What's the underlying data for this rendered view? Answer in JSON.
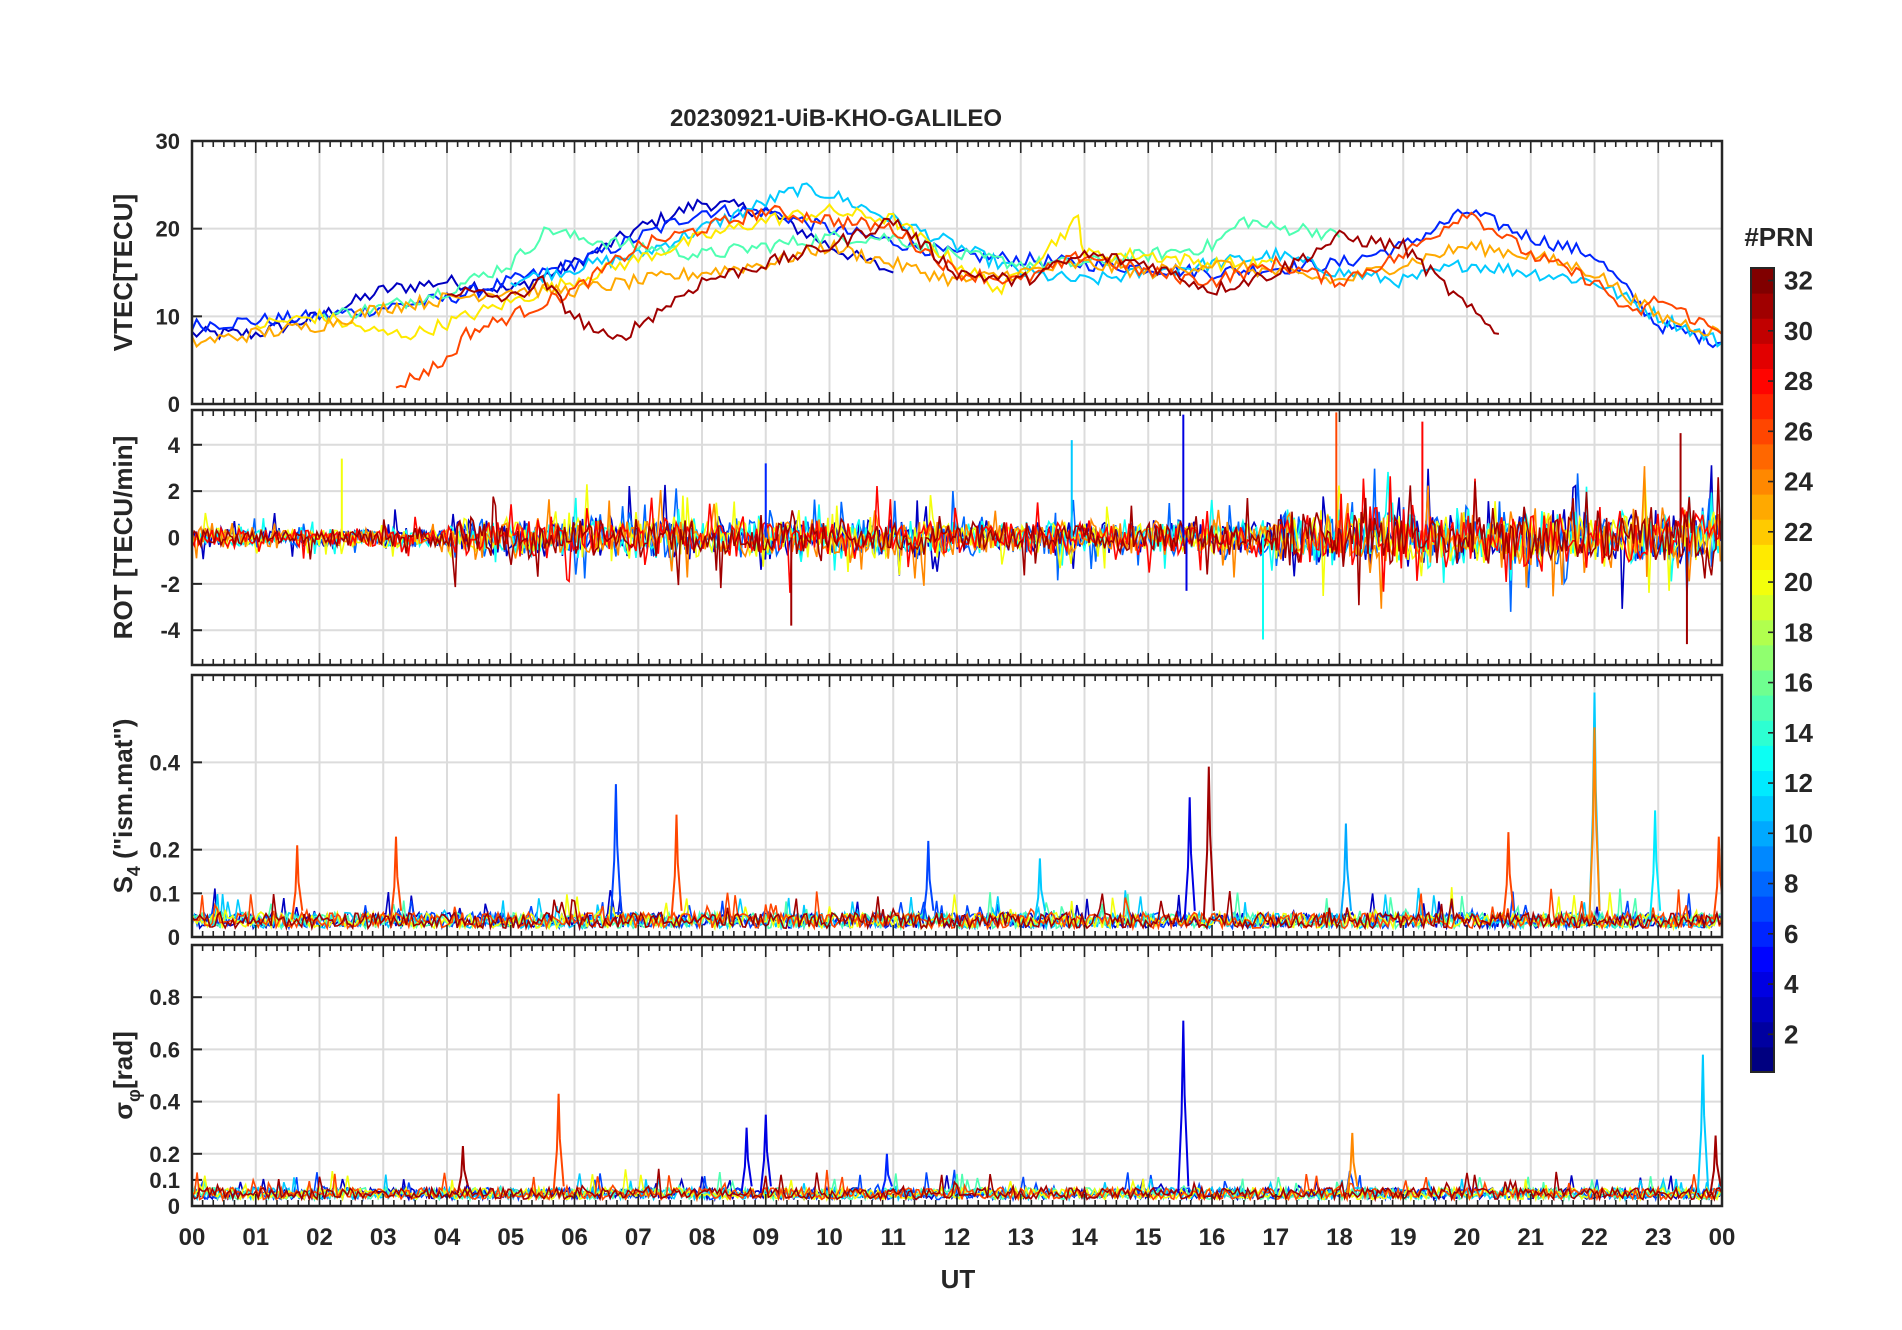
{
  "chart_data": {
    "type": "line",
    "title": "20230921-UiB-KHO-GALILEO",
    "xlabel": "UT",
    "x_tick_labels": [
      "00",
      "01",
      "02",
      "03",
      "04",
      "05",
      "06",
      "07",
      "08",
      "09",
      "10",
      "11",
      "12",
      "13",
      "14",
      "15",
      "16",
      "17",
      "18",
      "19",
      "20",
      "21",
      "22",
      "23",
      "00"
    ],
    "xlim_hours": [
      0,
      24
    ],
    "grid": true,
    "colorbar": {
      "title": "#PRN",
      "range": [
        1,
        32
      ],
      "ticks": [
        "2",
        "4",
        "6",
        "8",
        "10",
        "12",
        "14",
        "16",
        "18",
        "20",
        "22",
        "24",
        "26",
        "28",
        "30",
        "32"
      ],
      "colormap": "jet"
    },
    "panels": [
      {
        "id": "vtec",
        "ylabel": "VTEC[TECU]",
        "ylim": [
          0,
          30
        ],
        "y_ticks": [
          "0",
          "10",
          "20",
          "30"
        ],
        "series": [
          {
            "prn": 3,
            "x": [
              0,
              1,
              2,
              3,
              4,
              5,
              6,
              7,
              8,
              9,
              10,
              11
            ],
            "values": [
              8,
              8,
              10,
              13,
              14,
              13,
              16,
              20,
              23,
              22,
              18,
              15
            ]
          },
          {
            "prn": 6,
            "x": [
              0,
              2,
              4,
              6,
              8,
              9,
              10,
              12,
              14,
              16,
              18,
              19,
              20,
              21,
              22,
              23,
              24
            ],
            "values": [
              9,
              10,
              12,
              16,
              22,
              22,
              20,
              17,
              16,
              15,
              16,
              18,
              22,
              19,
              17,
              9,
              7
            ]
          },
          {
            "prn": 11,
            "x": [
              5,
              7,
              8,
              9,
              9.5,
              10,
              11,
              12,
              13,
              14,
              15,
              16,
              17,
              18,
              19,
              20,
              21,
              22,
              23,
              24
            ],
            "values": [
              14,
              17,
              20,
              23,
              24.5,
              24,
              21,
              18,
              15,
              14,
              15,
              16,
              17,
              15,
              14,
              16,
              15,
              14,
              10,
              7
            ]
          },
          {
            "prn": 15,
            "x": [
              2,
              3,
              4,
              5,
              5.6,
              6,
              7,
              8,
              9,
              10,
              11,
              12,
              13,
              14,
              15,
              16,
              16.5,
              17,
              17.5,
              18
            ],
            "values": [
              10,
              11,
              13,
              16,
              20,
              19,
              18,
              17,
              18,
              19,
              19,
              17,
              16,
              16,
              17,
              18,
              21,
              20,
              20,
              19
            ]
          },
          {
            "prn": 21,
            "x": [
              1,
              2,
              3,
              3.5,
              8,
              9,
              10,
              11,
              12,
              12.7,
              13,
              13.9,
              14,
              15,
              16,
              17
            ],
            "values": [
              9,
              10,
              8,
              8,
              19,
              21,
              22,
              21,
              16,
              13,
              15,
              21,
              17,
              17,
              16,
              16
            ]
          },
          {
            "prn": 23,
            "x": [
              0,
              2,
              3,
              4,
              5,
              6,
              7,
              8,
              9,
              10,
              11,
              12,
              13,
              14,
              15,
              16,
              17,
              18,
              19,
              20,
              21,
              22,
              23,
              24
            ],
            "values": [
              7,
              9,
              11,
              12,
              13,
              13,
              14,
              15,
              16,
              18,
              16,
              14,
              15,
              16,
              15,
              16,
              15,
              14,
              16,
              18,
              17,
              15,
              10,
              8
            ]
          },
          {
            "prn": 26,
            "x": [
              3.2,
              4,
              4.3,
              5,
              6,
              7,
              8,
              9,
              10,
              11,
              12,
              13,
              14,
              15,
              16,
              17,
              18,
              19,
              20,
              20.4,
              21,
              22,
              22.6,
              23,
              24
            ],
            "values": [
              2,
              5,
              8,
              10,
              13,
              18,
              20,
              22,
              21,
              20,
              15,
              14,
              17,
              15,
              14,
              16,
              14,
              17,
              22,
              20,
              17,
              14,
              10,
              12,
              8
            ]
          },
          {
            "prn": 31,
            "x": [
              4,
              5,
              5.5,
              6,
              6.6,
              8,
              10,
              11,
              12,
              13,
              14,
              15,
              16,
              17,
              18,
              19,
              20,
              20.5
            ],
            "values": [
              13,
              12,
              14,
              10,
              7,
              14,
              18,
              21,
              15,
              14,
              17,
              16,
              13,
              15,
              19,
              18,
              11,
              8
            ]
          }
        ]
      },
      {
        "id": "rot",
        "ylabel": "ROT [TECU/min]",
        "ylim": [
          -5.5,
          5.5
        ],
        "y_ticks": [
          "-4",
          "-2",
          "0",
          "2",
          "4"
        ],
        "spikes": [
          {
            "prn": 4,
            "x": 15.55,
            "value": 5.3
          },
          {
            "prn": 4,
            "x": 15.6,
            "value": -2.3
          },
          {
            "prn": 26,
            "x": 17.95,
            "value": 5.4
          },
          {
            "prn": 28,
            "x": 19.3,
            "value": 5.0
          },
          {
            "prn": 31,
            "x": 9.4,
            "value": -3.8
          },
          {
            "prn": 31,
            "x": 23.35,
            "value": 4.5
          },
          {
            "prn": 31,
            "x": 23.45,
            "value": -4.6
          },
          {
            "prn": 13,
            "x": 16.8,
            "value": -4.4
          },
          {
            "prn": 20,
            "x": 2.35,
            "value": 3.4
          },
          {
            "prn": 6,
            "x": 9.0,
            "value": 3.2
          },
          {
            "prn": 11,
            "x": 13.8,
            "value": 4.2
          }
        ],
        "noise_amplitude": {
          "00-04": 0.7,
          "04-12": 1.4,
          "12-17": 1.2,
          "17-24": 2.0
        }
      },
      {
        "id": "s4",
        "ylabel": "S4 (\"ism.mat\")",
        "ylabel_main": "S",
        "ylabel_sub": "4",
        "ylabel_tail": " (\"ism.mat\")",
        "ylim": [
          0,
          0.6
        ],
        "y_ticks": [
          "0",
          "0.1",
          "0.2",
          "0.4"
        ],
        "spikes": [
          {
            "prn": 26,
            "x": 1.65,
            "value": 0.21
          },
          {
            "prn": 26,
            "x": 3.2,
            "value": 0.23
          },
          {
            "prn": 7,
            "x": 6.65,
            "value": 0.35
          },
          {
            "prn": 26,
            "x": 7.6,
            "value": 0.28
          },
          {
            "prn": 7,
            "x": 11.55,
            "value": 0.22
          },
          {
            "prn": 11,
            "x": 13.3,
            "value": 0.18
          },
          {
            "prn": 4,
            "x": 15.65,
            "value": 0.32
          },
          {
            "prn": 31,
            "x": 15.95,
            "value": 0.39
          },
          {
            "prn": 10,
            "x": 18.1,
            "value": 0.26
          },
          {
            "prn": 26,
            "x": 20.65,
            "value": 0.24
          },
          {
            "prn": 11,
            "x": 22.0,
            "value": 0.56
          },
          {
            "prn": 24,
            "x": 22.0,
            "value": 0.48
          },
          {
            "prn": 12,
            "x": 22.95,
            "value": 0.29
          },
          {
            "prn": 26,
            "x": 23.95,
            "value": 0.23
          }
        ],
        "baseline": 0.04
      },
      {
        "id": "sigma_phi",
        "ylabel": "σφ[rad]",
        "ylabel_main": "σ",
        "ylabel_sub": "φ",
        "ylabel_tail": "[rad]",
        "ylim": [
          0,
          1.0
        ],
        "y_ticks": [
          "0",
          "0.1",
          "0.2",
          "0.4",
          "0.6",
          "0.8"
        ],
        "spikes": [
          {
            "prn": 31,
            "x": 4.25,
            "value": 0.23
          },
          {
            "prn": 26,
            "x": 5.75,
            "value": 0.43
          },
          {
            "prn": 4,
            "x": 8.7,
            "value": 0.3
          },
          {
            "prn": 4,
            "x": 9.0,
            "value": 0.35
          },
          {
            "prn": 6,
            "x": 10.9,
            "value": 0.2
          },
          {
            "prn": 4,
            "x": 15.55,
            "value": 0.71
          },
          {
            "prn": 24,
            "x": 18.2,
            "value": 0.28
          },
          {
            "prn": 11,
            "x": 23.7,
            "value": 0.58
          },
          {
            "prn": 31,
            "x": 23.9,
            "value": 0.27
          }
        ],
        "baseline": 0.05
      }
    ]
  }
}
